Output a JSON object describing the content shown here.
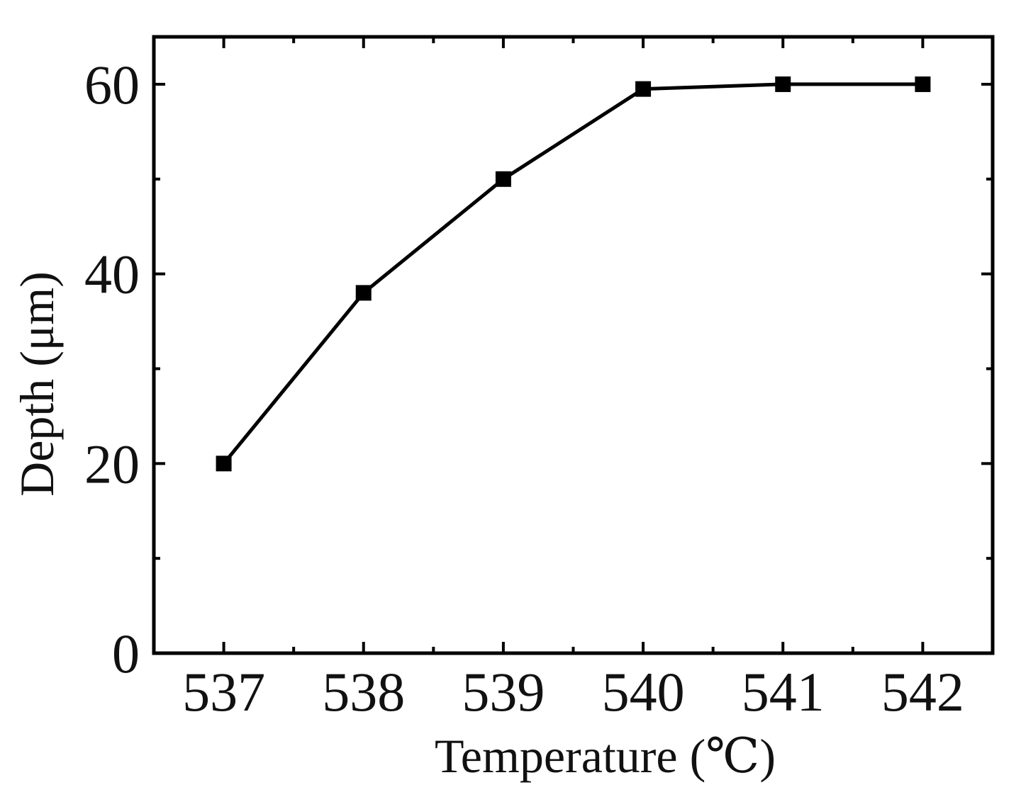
{
  "chart_data": {
    "type": "line",
    "title": "",
    "xlabel": "Temperature (℃)",
    "ylabel": "Depth (μm)",
    "x": [
      537,
      538,
      539,
      540,
      541,
      542
    ],
    "series": [
      {
        "name": "",
        "values": [
          20,
          38,
          50,
          59.5,
          60,
          60
        ],
        "marker": "square",
        "color": "#000000"
      }
    ],
    "xlim": [
      536.5,
      542.5
    ],
    "ylim": [
      0,
      65
    ],
    "x_ticks": [
      "537",
      "538",
      "539",
      "540",
      "541",
      "542"
    ],
    "y_ticks": [
      "0",
      "20",
      "40",
      "60"
    ],
    "y_minor_ticks": [
      10,
      30,
      50
    ],
    "grid": false,
    "legend": "none",
    "frame": "box"
  }
}
